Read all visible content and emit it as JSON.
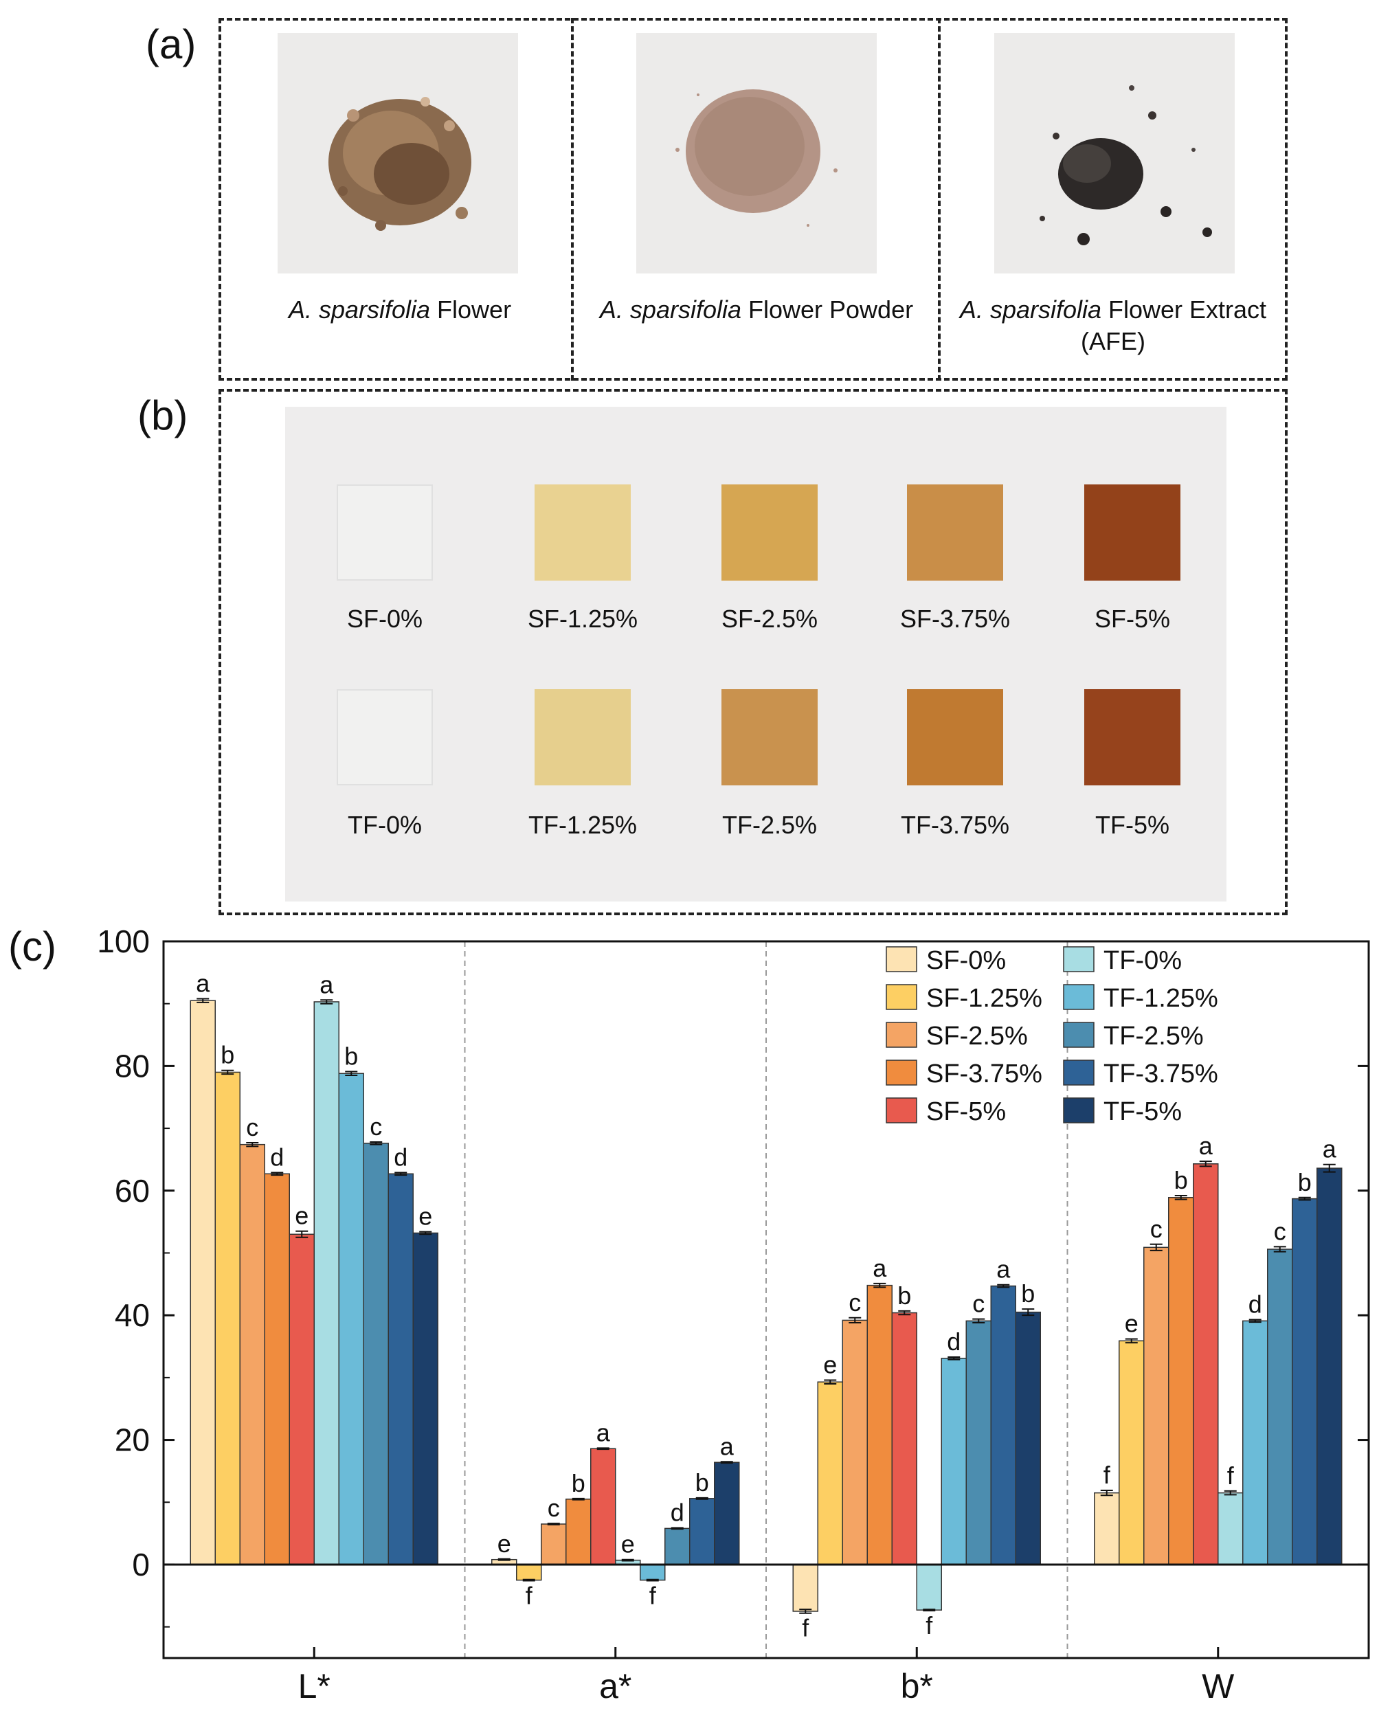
{
  "panels": {
    "a": {
      "label": "(a)",
      "items": [
        {
          "italic": "A. sparsifolia",
          "rest": " Flower",
          "line2": ""
        },
        {
          "italic": "A. sparsifolia",
          "rest": " Flower Powder",
          "line2": ""
        },
        {
          "italic": "A. sparsifolia",
          "rest": " Flower Extract",
          "line2": "(AFE)"
        }
      ]
    },
    "b": {
      "label": "(b)",
      "row1": [
        "SF-0%",
        "SF-1.25%",
        "SF-2.5%",
        "SF-3.75%",
        "SF-5%"
      ],
      "row2": [
        "TF-0%",
        "TF-1.25%",
        "TF-2.5%",
        "TF-3.75%",
        "TF-5%"
      ],
      "row1_colors": [
        "#f1f1f0",
        "#e9d291",
        "#d6a652",
        "#c98e48",
        "#93421a"
      ],
      "row2_colors": [
        "#f1f1f0",
        "#e6cf8d",
        "#c9924e",
        "#c07a31",
        "#96431c"
      ]
    },
    "c": {
      "label": "(c)"
    }
  },
  "chart_data": {
    "type": "bar",
    "categories": [
      "L*",
      "a*",
      "b*",
      "W"
    ],
    "ylim": [
      -15,
      100
    ],
    "yticks": [
      0,
      20,
      40,
      60,
      80,
      100
    ],
    "grid": false,
    "legend_position": "top-right",
    "series": [
      {
        "name": "SF-0%",
        "color": "#fde3b3",
        "values": [
          90.5,
          0.8,
          -7.5,
          11.5
        ],
        "errors": [
          0.3,
          0.1,
          0.3,
          0.4
        ],
        "letters": [
          "a",
          "e",
          "f",
          "f"
        ]
      },
      {
        "name": "SF-1.25%",
        "color": "#fdcf63",
        "values": [
          79.0,
          -2.5,
          29.3,
          35.9
        ],
        "errors": [
          0.3,
          0.1,
          0.3,
          0.3
        ],
        "letters": [
          "b",
          "f",
          "e",
          "e"
        ]
      },
      {
        "name": "SF-2.5%",
        "color": "#f4a464",
        "values": [
          67.4,
          6.5,
          39.2,
          50.9
        ],
        "errors": [
          0.3,
          0.1,
          0.4,
          0.5
        ],
        "letters": [
          "c",
          "c",
          "c",
          "c"
        ]
      },
      {
        "name": "SF-3.75%",
        "color": "#f08c3e",
        "values": [
          62.7,
          10.5,
          44.8,
          58.9
        ],
        "errors": [
          0.2,
          0.1,
          0.3,
          0.3
        ],
        "letters": [
          "d",
          "b",
          "a",
          "b"
        ]
      },
      {
        "name": "SF-5%",
        "color": "#e85a4e",
        "values": [
          53.0,
          18.6,
          40.4,
          64.3
        ],
        "errors": [
          0.5,
          0.1,
          0.3,
          0.4
        ],
        "letters": [
          "e",
          "a",
          "b",
          "a"
        ]
      },
      {
        "name": "TF-0%",
        "color": "#a8dde3",
        "values": [
          90.3,
          0.7,
          -7.3,
          11.5
        ],
        "errors": [
          0.3,
          0.1,
          0.1,
          0.3
        ],
        "letters": [
          "a",
          "e",
          "f",
          "f"
        ]
      },
      {
        "name": "TF-1.25%",
        "color": "#6bbbd8",
        "values": [
          78.8,
          -2.5,
          33.1,
          39.1
        ],
        "errors": [
          0.3,
          0.1,
          0.2,
          0.2
        ],
        "letters": [
          "b",
          "f",
          "d",
          "d"
        ]
      },
      {
        "name": "TF-2.5%",
        "color": "#4c8daf",
        "values": [
          67.6,
          5.8,
          39.1,
          50.6
        ],
        "errors": [
          0.2,
          0.1,
          0.3,
          0.4
        ],
        "letters": [
          "c",
          "d",
          "c",
          "c"
        ]
      },
      {
        "name": "TF-3.75%",
        "color": "#2e6296",
        "values": [
          62.7,
          10.6,
          44.7,
          58.7
        ],
        "errors": [
          0.2,
          0.1,
          0.2,
          0.2
        ],
        "letters": [
          "d",
          "b",
          "a",
          "b"
        ]
      },
      {
        "name": "TF-5%",
        "color": "#1c3f6a",
        "values": [
          53.2,
          16.4,
          40.5,
          63.6
        ],
        "errors": [
          0.2,
          0.1,
          0.5,
          0.6
        ],
        "letters": [
          "e",
          "a",
          "b",
          "a"
        ]
      }
    ]
  }
}
